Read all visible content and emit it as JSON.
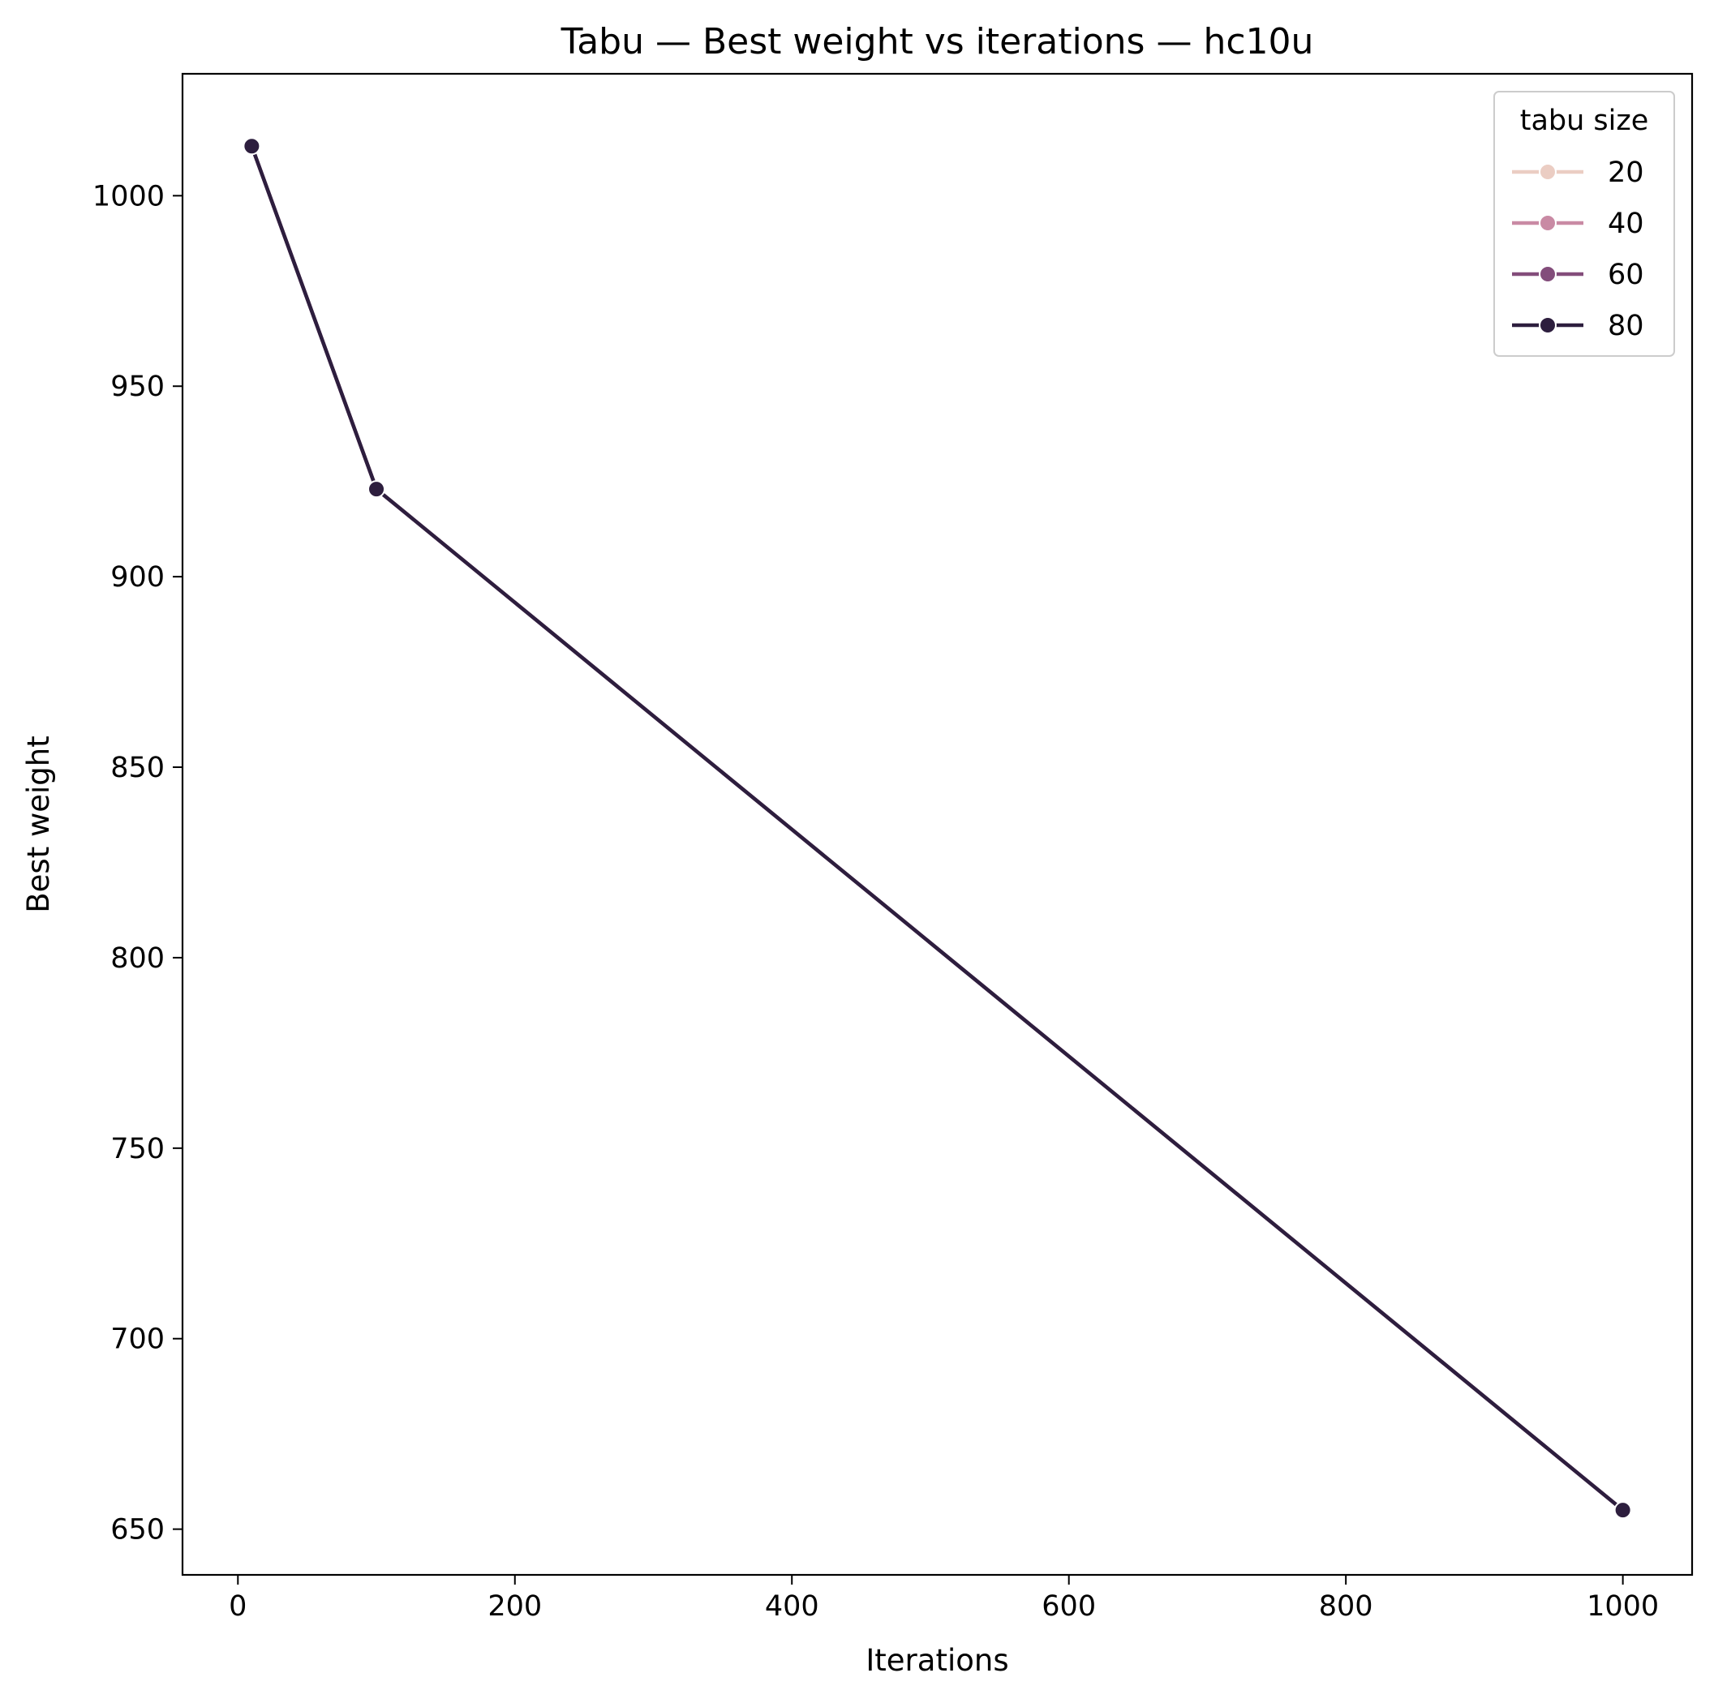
{
  "chart_data": {
    "type": "line",
    "title": "Tabu — Best weight vs iterations — hc10u",
    "xlabel": "Iterations",
    "ylabel": "Best weight",
    "xlim": [
      -40,
      1050
    ],
    "ylim": [
      638,
      1032
    ],
    "xticks": [
      0,
      200,
      400,
      600,
      800,
      1000
    ],
    "yticks": [
      650,
      700,
      750,
      800,
      850,
      900,
      950,
      1000
    ],
    "grid": false,
    "legend": {
      "title": "tabu size",
      "placement": "top-right"
    },
    "x": [
      10,
      100,
      1000
    ],
    "series": [
      {
        "name": "20",
        "color": "#ebcdc3",
        "values": [
          1013,
          923,
          655
        ]
      },
      {
        "name": "40",
        "color": "#c98aa4",
        "values": [
          1013,
          923,
          655
        ]
      },
      {
        "name": "60",
        "color": "#834d7b",
        "values": [
          1013,
          923,
          655
        ]
      },
      {
        "name": "80",
        "color": "#2d1e3e",
        "values": [
          1013,
          923,
          655
        ]
      }
    ]
  }
}
